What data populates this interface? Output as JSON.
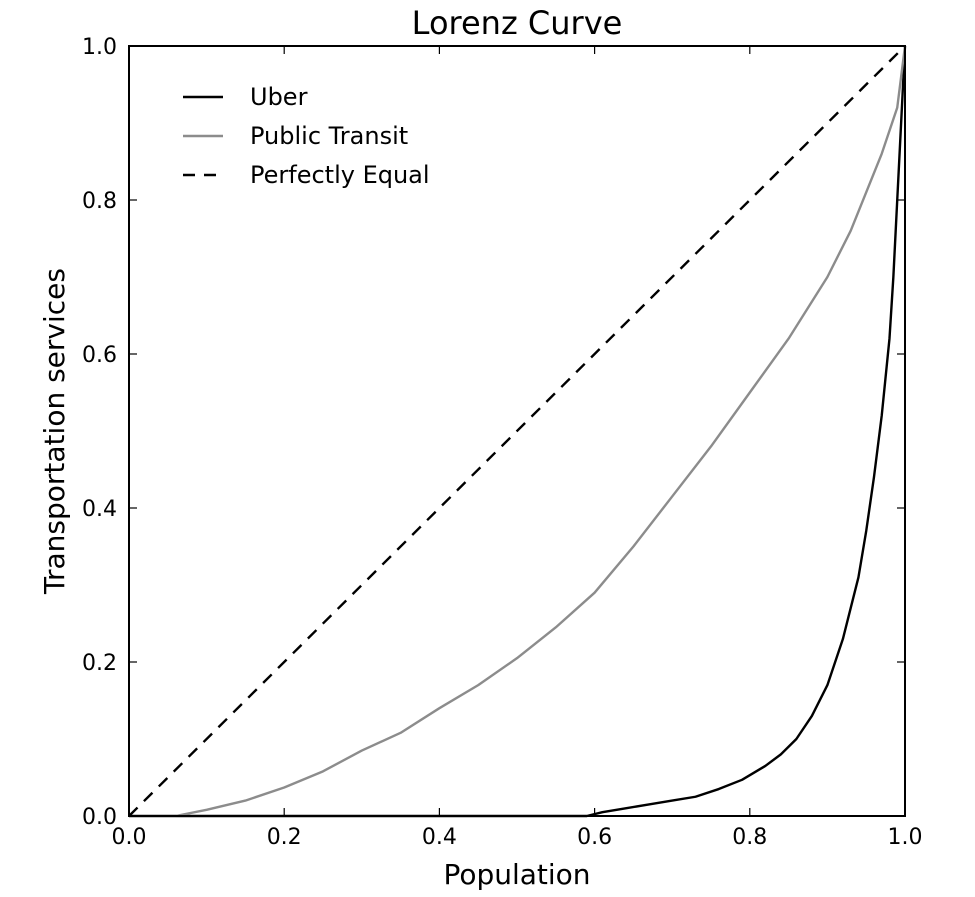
{
  "chart_data": {
    "type": "line",
    "title": "Lorenz Curve",
    "xlabel": "Population",
    "ylabel": "Transportation services",
    "xlim": [
      0.0,
      1.0
    ],
    "ylim": [
      0.0,
      1.0
    ],
    "x_ticks": [
      "0.0",
      "0.2",
      "0.4",
      "0.6",
      "0.8",
      "1.0"
    ],
    "y_ticks": [
      "0.0",
      "0.2",
      "0.4",
      "0.6",
      "0.8",
      "1.0"
    ],
    "grid": false,
    "legend_position": "top-left",
    "series": [
      {
        "name": "Uber",
        "color": "#000000",
        "style": "solid",
        "x": [
          0.0,
          0.59,
          0.61,
          0.64,
          0.67,
          0.7,
          0.73,
          0.76,
          0.79,
          0.82,
          0.84,
          0.86,
          0.88,
          0.9,
          0.92,
          0.94,
          0.95,
          0.96,
          0.97,
          0.98,
          0.985,
          0.99,
          0.995,
          1.0
        ],
        "y": [
          0.0,
          0.0,
          0.005,
          0.01,
          0.015,
          0.02,
          0.025,
          0.035,
          0.047,
          0.065,
          0.08,
          0.1,
          0.13,
          0.17,
          0.23,
          0.31,
          0.37,
          0.44,
          0.52,
          0.62,
          0.7,
          0.8,
          0.9,
          1.0
        ]
      },
      {
        "name": "Public Transit",
        "color": "#8c8c8c",
        "style": "solid",
        "x": [
          0.0,
          0.06,
          0.1,
          0.15,
          0.2,
          0.25,
          0.3,
          0.35,
          0.4,
          0.45,
          0.5,
          0.55,
          0.6,
          0.65,
          0.7,
          0.75,
          0.8,
          0.85,
          0.9,
          0.93,
          0.95,
          0.97,
          0.99,
          1.0
        ],
        "y": [
          0.0,
          0.0,
          0.008,
          0.02,
          0.037,
          0.058,
          0.085,
          0.108,
          0.14,
          0.17,
          0.205,
          0.245,
          0.29,
          0.35,
          0.415,
          0.48,
          0.55,
          0.62,
          0.7,
          0.76,
          0.81,
          0.86,
          0.92,
          1.0
        ]
      },
      {
        "name": "Perfectly Equal",
        "color": "#000000",
        "style": "dashed",
        "x": [
          0.0,
          1.0
        ],
        "y": [
          0.0,
          1.0
        ]
      }
    ]
  }
}
